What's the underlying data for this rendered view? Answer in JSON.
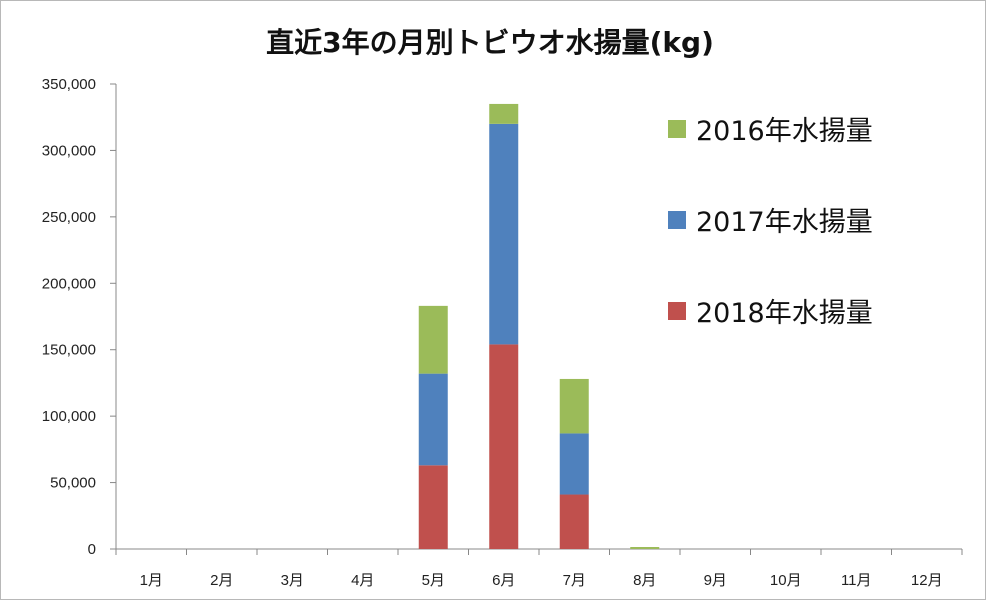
{
  "chart_data": {
    "type": "bar",
    "stacked": true,
    "title": "直近3年の月別トビウオ水揚量(kg)",
    "categories": [
      "1月",
      "2月",
      "3月",
      "4月",
      "5月",
      "6月",
      "7月",
      "8月",
      "9月",
      "10月",
      "11月",
      "12月"
    ],
    "series": [
      {
        "name": "2018年水揚量",
        "color": "#c0504d",
        "values": [
          0,
          0,
          0,
          0,
          63000,
          154000,
          41000,
          0,
          0,
          0,
          0,
          0
        ]
      },
      {
        "name": "2017年水揚量",
        "color": "#4f81bd",
        "values": [
          0,
          0,
          0,
          0,
          69000,
          166000,
          46000,
          0,
          0,
          0,
          0,
          0
        ]
      },
      {
        "name": "2016年水揚量",
        "color": "#9bbb59",
        "values": [
          0,
          0,
          0,
          0,
          51000,
          15000,
          41000,
          1500,
          0,
          0,
          0,
          0
        ]
      }
    ],
    "legend_order": [
      "2016年水揚量",
      "2017年水揚量",
      "2018年水揚量"
    ],
    "ylim": [
      0,
      350000
    ],
    "yticks": [
      0,
      50000,
      100000,
      150000,
      200000,
      250000,
      300000,
      350000
    ],
    "ytick_labels": [
      "0",
      "50,000",
      "100,000",
      "150,000",
      "200,000",
      "250,000",
      "300,000",
      "350,000"
    ],
    "grid": false,
    "legend_position": "right"
  }
}
